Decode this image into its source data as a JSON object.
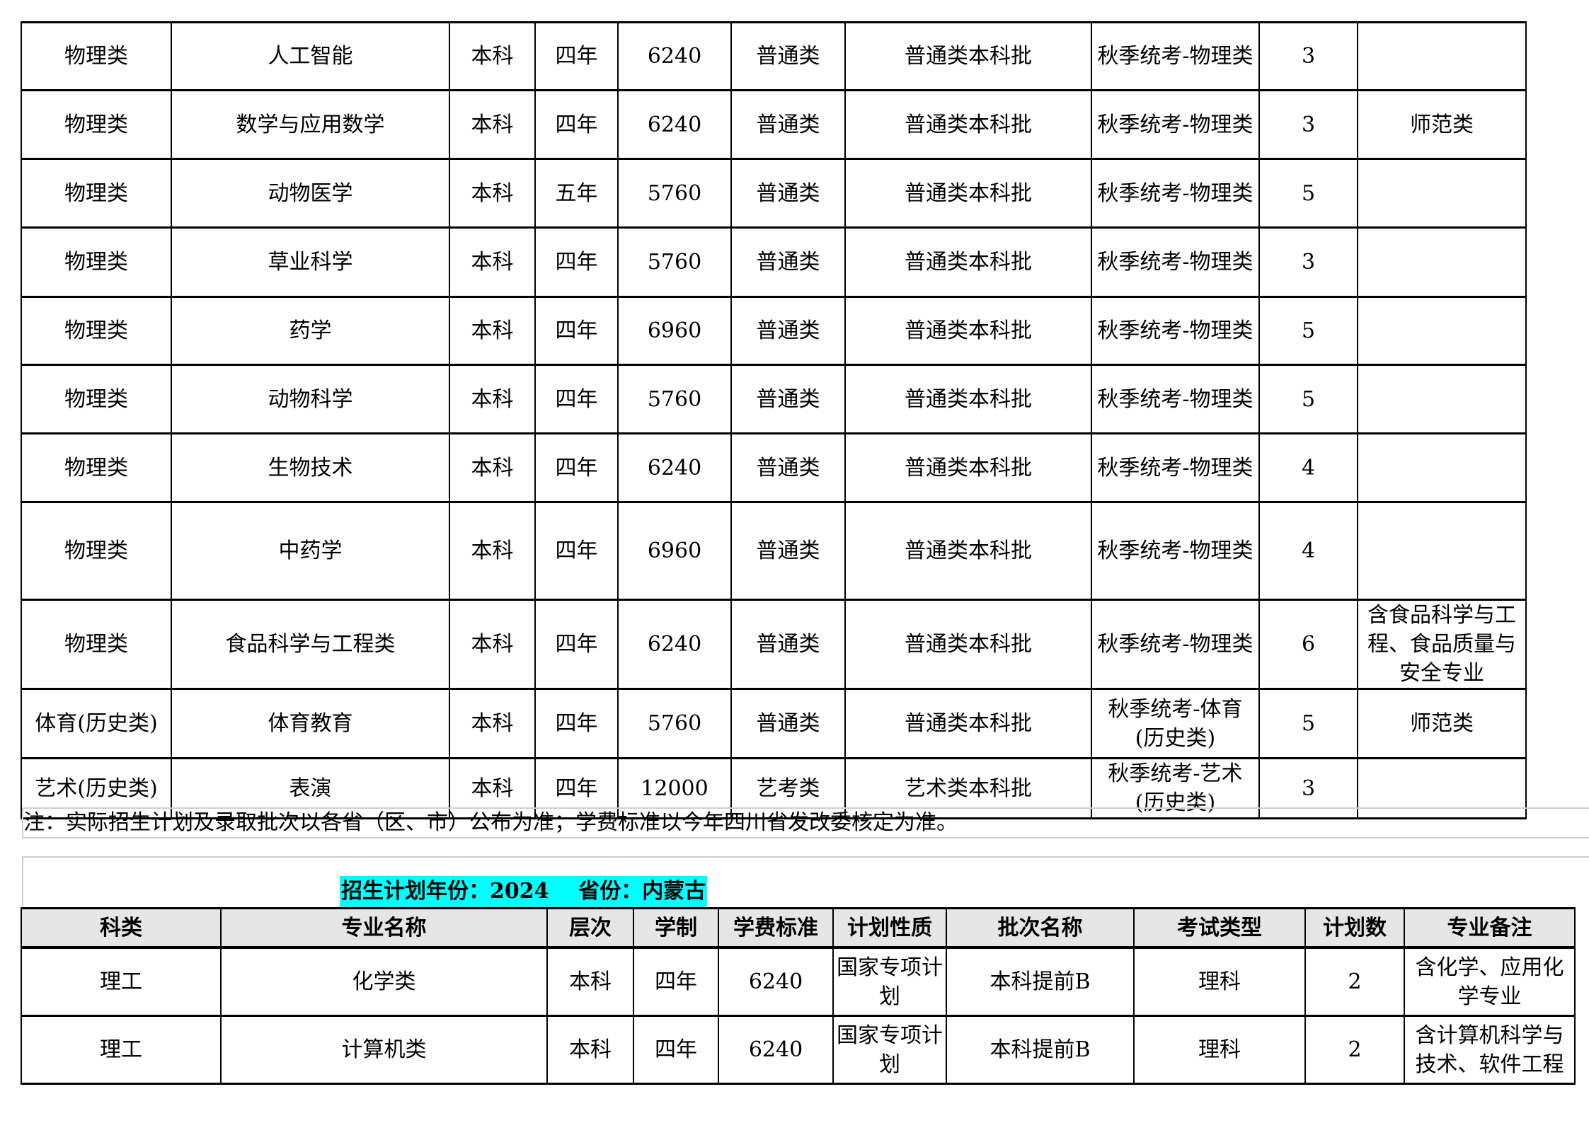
{
  "table1": {
    "rows": [
      [
        "物理类",
        "人工智能",
        "本科",
        "四年",
        "6240",
        "普通类",
        "普通类本科批",
        "秋季统考-物理类",
        "3",
        ""
      ],
      [
        "物理类",
        "数学与应用数学",
        "本科",
        "四年",
        "6240",
        "普通类",
        "普通类本科批",
        "秋季统考-物理类",
        "3",
        "师范类"
      ],
      [
        "物理类",
        "动物医学",
        "本科",
        "五年",
        "5760",
        "普通类",
        "普通类本科批",
        "秋季统考-物理类",
        "5",
        ""
      ],
      [
        "物理类",
        "草业科学",
        "本科",
        "四年",
        "5760",
        "普通类",
        "普通类本科批",
        "秋季统考-物理类",
        "3",
        ""
      ],
      [
        "物理类",
        "药学",
        "本科",
        "四年",
        "6960",
        "普通类",
        "普通类本科批",
        "秋季统考-物理类",
        "5",
        ""
      ],
      [
        "物理类",
        "动物科学",
        "本科",
        "四年",
        "5760",
        "普通类",
        "普通类本科批",
        "秋季统考-物理类",
        "5",
        ""
      ],
      [
        "物理类",
        "生物技术",
        "本科",
        "四年",
        "6240",
        "普通类",
        "普通类本科批",
        "秋季统考-物理类",
        "4",
        ""
      ],
      [
        "物理类",
        "中药学",
        "本科",
        "四年",
        "6960",
        "普通类",
        "普通类本科批",
        "秋季统考-物理类",
        "4",
        ""
      ],
      [
        "物理类",
        "食品科学与工程类",
        "本科",
        "四年",
        "6240",
        "普通类",
        "普通类本科批",
        "秋季统考-物理类",
        "6",
        "含食品科学与工程、食品质量与安全专业"
      ],
      [
        "体育(历史类)",
        "体育教育",
        "本科",
        "四年",
        "5760",
        "普通类",
        "普通类本科批",
        "秋季统考-体育(历史类)",
        "5",
        "师范类"
      ],
      [
        "艺术(历史类)",
        "表演",
        "本科",
        "四年",
        "12000",
        "艺考类",
        "艺术类本科批",
        "秋季统考-艺术(历史类)",
        "3",
        ""
      ]
    ]
  },
  "note": "注：实际招生计划及录取批次以各省（区、市）公布为准；学费标准以今年四川省发改委核定为准。",
  "section2": {
    "title": "招生计划年份：2024    省份：内蒙古",
    "highlight_color": "#00ffff",
    "headers": [
      "科类",
      "专业名称",
      "层次",
      "学制",
      "学费标准",
      "计划性质",
      "批次名称",
      "考试类型",
      "计划数",
      "专业备注"
    ],
    "rows": [
      [
        "理工",
        "化学类",
        "本科",
        "四年",
        "6240",
        "国家专项计划",
        "本科提前B",
        "理科",
        "2",
        "含化学、应用化学专业"
      ],
      [
        "理工",
        "计算机类",
        "本科",
        "四年",
        "6240",
        "国家专项计划",
        "本科提前B",
        "理科",
        "2",
        "含计算机科学与技术、软件工程"
      ]
    ]
  }
}
